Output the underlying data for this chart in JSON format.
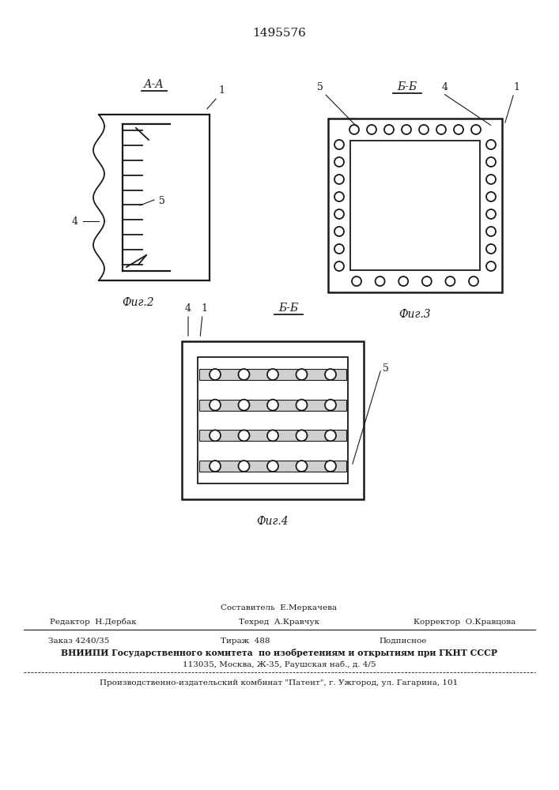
{
  "patent_number": "1495576",
  "fig2_label": "А-А",
  "fig3_label": "Б-Б",
  "fig4_label": "Б-Б",
  "fig2_caption": "Фиг.2",
  "fig3_caption": "Фиг.3",
  "fig4_caption": "Фиг.4",
  "label_1": "1",
  "label_4": "4",
  "label_5": "5",
  "footer_line1": "Составитель  Е.Меркачева",
  "footer_line2_col1": "Редактор  Н.Дербак",
  "footer_line2_col2": "Техред  А.Кравчук",
  "footer_line2_col3": "Корректор  О.Кравцова",
  "footer_line3_col1": "Заказ 4240/35",
  "footer_line3_col2": "Тираж  488",
  "footer_line3_col3": "Подписное",
  "footer_line4": "ВНИИПИ Государственного комитета  по изобретениям и открытиям при ГКНТ СССР",
  "footer_line5": "113035, Москва, Ж-35, Раушская наб., д. 4/5",
  "footer_line6": "Производственно-издательский комбинат \"Патент\", г. Ужгород, ул. Гагарина, 101",
  "bg_color": "#ffffff",
  "line_color": "#1a1a1a"
}
